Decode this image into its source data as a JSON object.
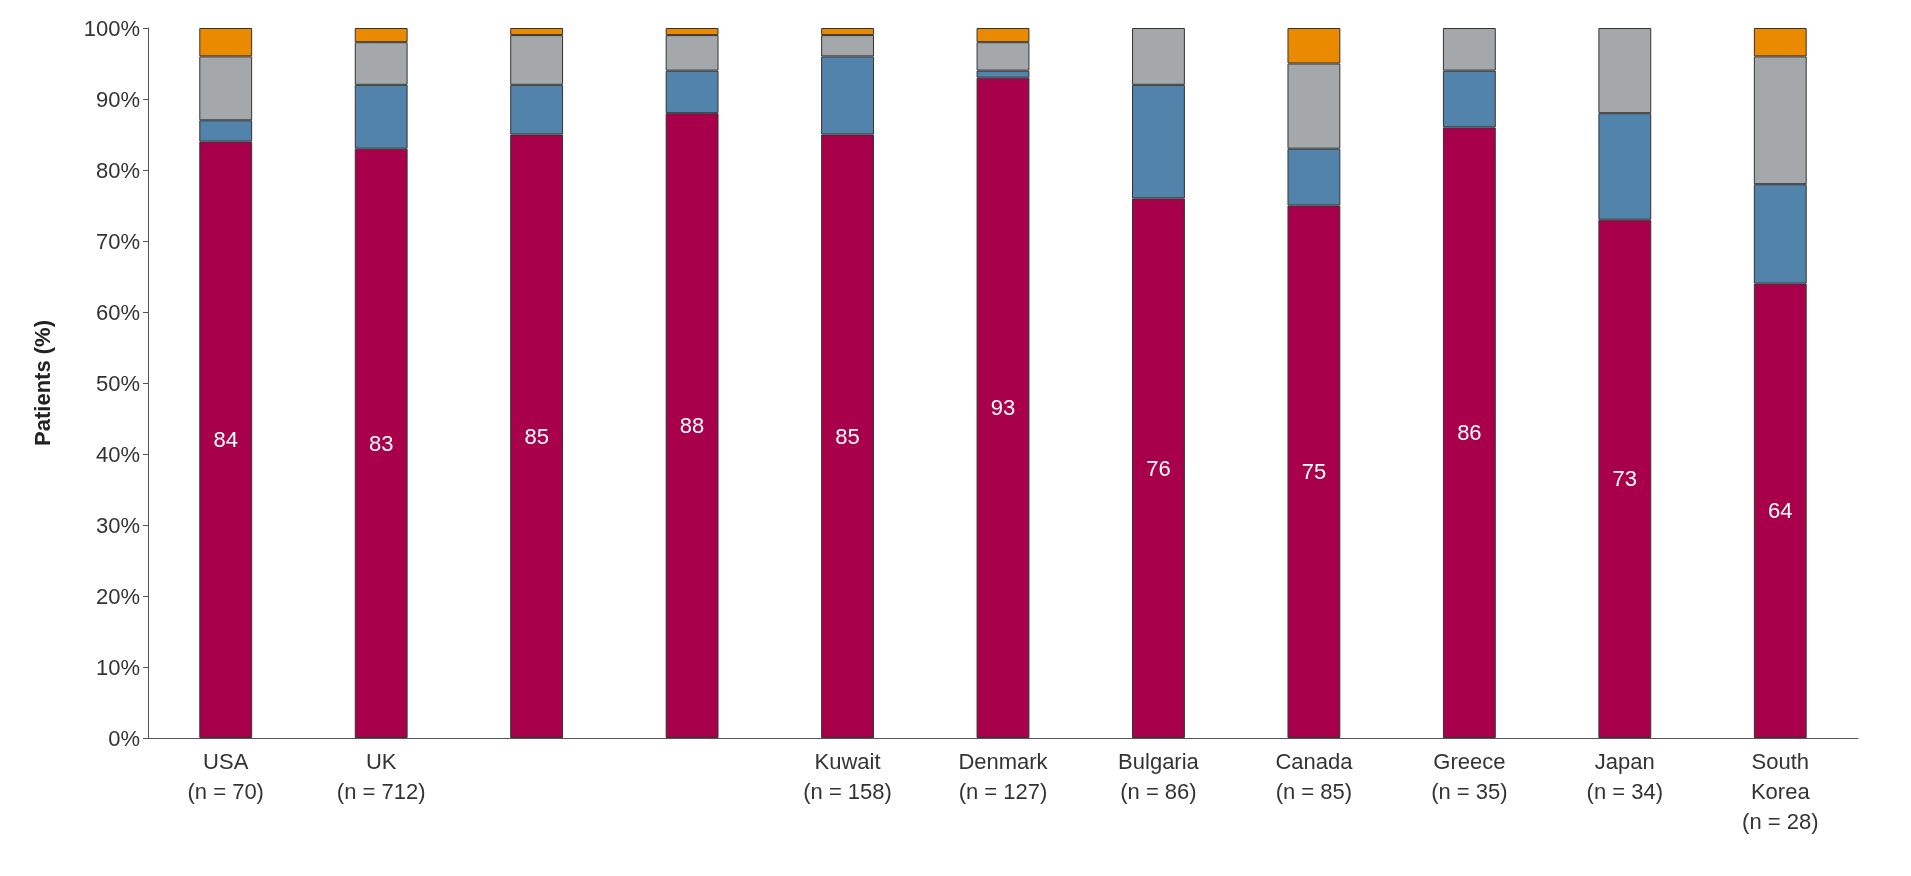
{
  "chart_data": {
    "type": "bar",
    "stacked": true,
    "ylabel": "Patients (%)",
    "categories": [
      "USA\n(n = 70)",
      "UK\n(n = 712)",
      null,
      null,
      "Kuwait\n(n = 158)",
      "Denmark\n(n = 127)",
      "Bulgaria\n(n = 86)",
      "Canada\n(n = 85)",
      "Greece\n(n = 35)",
      "Japan\n(n = 34)",
      "South\nKorea\n(n = 28)"
    ],
    "series": [
      {
        "color": "#a8004a",
        "values": [
          84,
          83,
          85,
          88,
          85,
          93,
          76,
          75,
          86,
          73,
          64
        ],
        "value_labels": [
          "84",
          "83",
          "85",
          "88",
          "85",
          "93",
          "76",
          "75",
          "86",
          "73",
          "64"
        ]
      },
      {
        "color": "#5284ab",
        "values": [
          3,
          9,
          7,
          6,
          11,
          1,
          16,
          8,
          8,
          15,
          14
        ]
      },
      {
        "color": "#a5a8ab",
        "values": [
          9,
          6,
          7,
          5,
          3,
          4,
          8,
          12,
          6,
          12,
          18
        ]
      },
      {
        "color": "#e98a00",
        "values": [
          4,
          2,
          1,
          1,
          1,
          2,
          0,
          5,
          0,
          0,
          4
        ]
      }
    ],
    "ylim": [
      0,
      100
    ],
    "yticks": [
      {
        "value": 0,
        "label": "0%"
      },
      {
        "value": 10,
        "label": "10%"
      },
      {
        "value": 20,
        "label": "20%"
      },
      {
        "value": 30,
        "label": "30%"
      },
      {
        "value": 40,
        "label": "40%"
      },
      {
        "value": 50,
        "label": "50%"
      },
      {
        "value": 60,
        "label": "60%"
      },
      {
        "value": 70,
        "label": "70%"
      },
      {
        "value": 80,
        "label": "80%"
      },
      {
        "value": 90,
        "label": "90%"
      },
      {
        "value": 100,
        "label": "100%"
      }
    ],
    "grid": false
  }
}
